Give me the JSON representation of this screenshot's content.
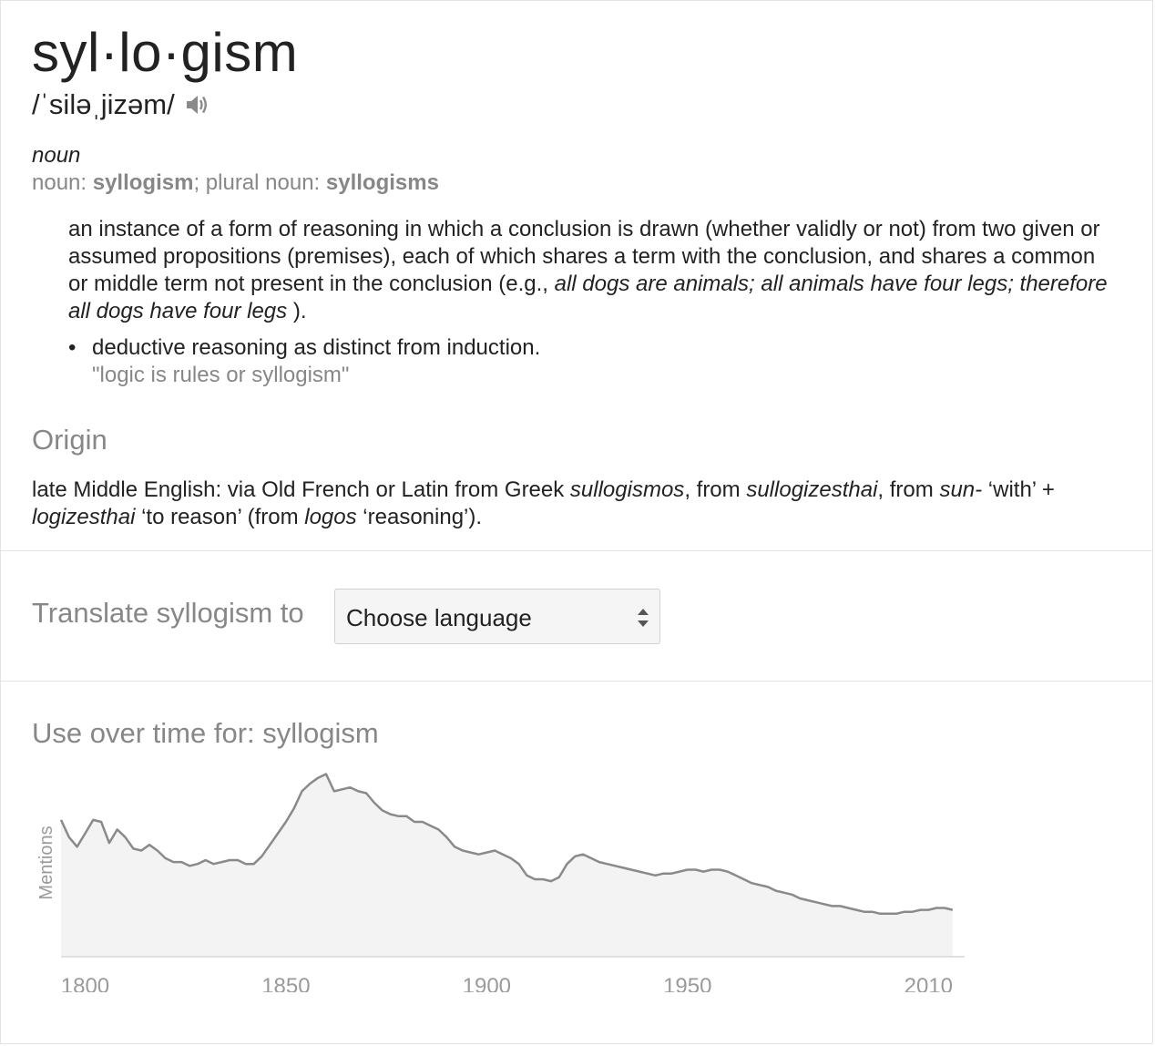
{
  "entry": {
    "headword": "syl·lo·gism",
    "phonetic": "/ˈsiləˌjizəm/",
    "part_of_speech": "noun",
    "forms": {
      "noun_label": "noun: ",
      "noun": "syllogism",
      "sep": "; plural noun: ",
      "plural": "syllogisms"
    },
    "definition": {
      "text": "an instance of a form of reasoning in which a conclusion is drawn (whether validly or not) from two given or assumed propositions (premises), each of which shares a term with the conclusion, and shares a common or middle term not present in the conclusion (e.g., ",
      "example_inline": "all dogs are animals; all animals have four legs; therefore all dogs have four legs",
      "close": " )."
    },
    "subsense": {
      "bullet": "•",
      "text": "deductive reasoning as distinct from induction.",
      "example": "\"logic is rules or syllogism\""
    },
    "origin_heading": "Origin",
    "origin": {
      "p1": "late Middle English: via Old French or Latin from Greek ",
      "w1": "sullogismos",
      "p2": ", from ",
      "w2": "sullogizesthai",
      "p3": ", from ",
      "w3": "sun-",
      "p4": " ‘with’ + ",
      "w4": "logizesthai",
      "p5": " ‘to reason’ (from ",
      "w5": "logos",
      "p6": " ‘reasoning’)."
    }
  },
  "translate": {
    "label": "Translate syllogism to",
    "select_value": "Choose language"
  },
  "usage": {
    "title": "Use over time for: syllogism"
  },
  "chart_data": {
    "type": "area",
    "ylabel": "Mentions",
    "xlabel": "",
    "x_ticks": [
      1800,
      1850,
      1900,
      1950,
      2010
    ],
    "xlim": [
      1794,
      2019
    ],
    "ylim": [
      0,
      100
    ],
    "colors": {
      "line": "#8a8a8a",
      "fill": "#f3f3f3",
      "axis": "#e0e0e0",
      "tick_label": "#9a9a9a"
    },
    "series": [
      {
        "values": [
          [
            1794,
            71
          ],
          [
            1796,
            62
          ],
          [
            1798,
            57
          ],
          [
            1800,
            64
          ],
          [
            1802,
            71
          ],
          [
            1804,
            70
          ],
          [
            1806,
            59
          ],
          [
            1808,
            66
          ],
          [
            1810,
            62
          ],
          [
            1812,
            56
          ],
          [
            1814,
            55
          ],
          [
            1816,
            58
          ],
          [
            1818,
            55
          ],
          [
            1820,
            51
          ],
          [
            1822,
            49
          ],
          [
            1824,
            49
          ],
          [
            1826,
            47
          ],
          [
            1828,
            48
          ],
          [
            1830,
            50
          ],
          [
            1832,
            48
          ],
          [
            1834,
            49
          ],
          [
            1836,
            50
          ],
          [
            1838,
            50
          ],
          [
            1840,
            48
          ],
          [
            1842,
            48
          ],
          [
            1844,
            52
          ],
          [
            1846,
            58
          ],
          [
            1848,
            64
          ],
          [
            1850,
            70
          ],
          [
            1852,
            77
          ],
          [
            1854,
            86
          ],
          [
            1856,
            90
          ],
          [
            1858,
            93
          ],
          [
            1860,
            95
          ],
          [
            1862,
            86
          ],
          [
            1864,
            87
          ],
          [
            1866,
            88
          ],
          [
            1868,
            86
          ],
          [
            1870,
            85
          ],
          [
            1872,
            80
          ],
          [
            1874,
            76
          ],
          [
            1876,
            74
          ],
          [
            1878,
            73
          ],
          [
            1880,
            73
          ],
          [
            1882,
            70
          ],
          [
            1884,
            70
          ],
          [
            1886,
            68
          ],
          [
            1888,
            66
          ],
          [
            1890,
            62
          ],
          [
            1892,
            57
          ],
          [
            1894,
            55
          ],
          [
            1896,
            54
          ],
          [
            1898,
            53
          ],
          [
            1900,
            54
          ],
          [
            1902,
            55
          ],
          [
            1904,
            53
          ],
          [
            1906,
            51
          ],
          [
            1908,
            48
          ],
          [
            1910,
            42
          ],
          [
            1912,
            40
          ],
          [
            1914,
            40
          ],
          [
            1916,
            39
          ],
          [
            1918,
            41
          ],
          [
            1920,
            48
          ],
          [
            1922,
            52
          ],
          [
            1924,
            53
          ],
          [
            1926,
            51
          ],
          [
            1928,
            49
          ],
          [
            1930,
            48
          ],
          [
            1932,
            47
          ],
          [
            1934,
            46
          ],
          [
            1936,
            45
          ],
          [
            1938,
            44
          ],
          [
            1940,
            43
          ],
          [
            1942,
            42
          ],
          [
            1944,
            43
          ],
          [
            1946,
            43
          ],
          [
            1948,
            44
          ],
          [
            1950,
            45
          ],
          [
            1952,
            45
          ],
          [
            1954,
            44
          ],
          [
            1956,
            45
          ],
          [
            1958,
            45
          ],
          [
            1960,
            44
          ],
          [
            1962,
            42
          ],
          [
            1964,
            40
          ],
          [
            1966,
            38
          ],
          [
            1968,
            37
          ],
          [
            1970,
            36
          ],
          [
            1972,
            34
          ],
          [
            1974,
            33
          ],
          [
            1976,
            32
          ],
          [
            1978,
            30
          ],
          [
            1980,
            29
          ],
          [
            1982,
            28
          ],
          [
            1984,
            27
          ],
          [
            1986,
            26
          ],
          [
            1988,
            26
          ],
          [
            1990,
            25
          ],
          [
            1992,
            24
          ],
          [
            1994,
            23
          ],
          [
            1996,
            23
          ],
          [
            1998,
            22
          ],
          [
            2000,
            22
          ],
          [
            2002,
            22
          ],
          [
            2004,
            23
          ],
          [
            2006,
            23
          ],
          [
            2008,
            24
          ],
          [
            2010,
            24
          ],
          [
            2012,
            25
          ],
          [
            2014,
            25
          ],
          [
            2016,
            24
          ]
        ]
      }
    ]
  }
}
